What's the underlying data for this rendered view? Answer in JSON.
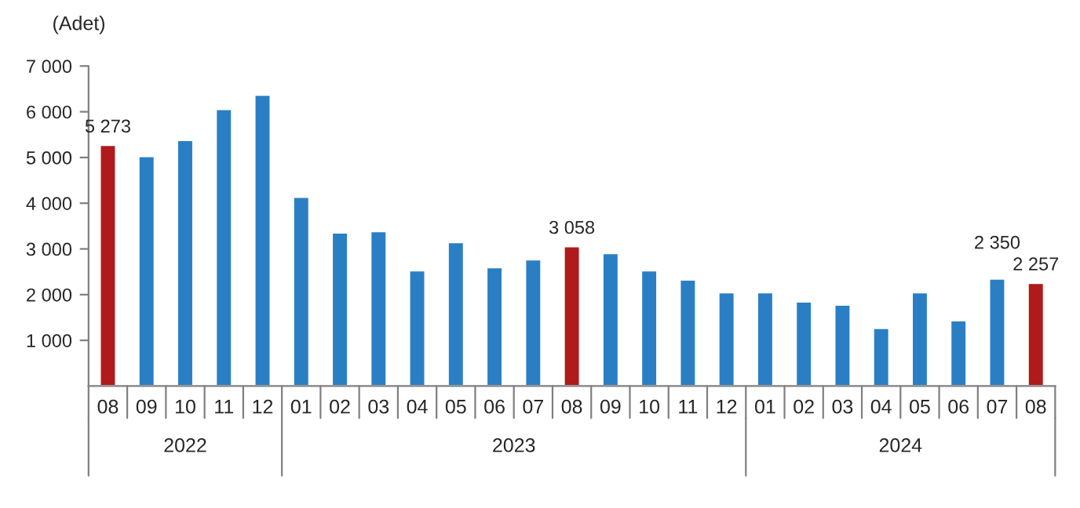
{
  "chart_data": {
    "type": "bar",
    "ylabel": "(Adet)",
    "categories": [
      "08",
      "09",
      "10",
      "11",
      "12",
      "01",
      "02",
      "03",
      "04",
      "05",
      "06",
      "07",
      "08",
      "09",
      "10",
      "11",
      "12",
      "01",
      "02",
      "03",
      "04",
      "05",
      "06",
      "07",
      "08"
    ],
    "values": [
      5273,
      5030,
      5380,
      6060,
      6370,
      4140,
      3360,
      3390,
      2530,
      3150,
      2600,
      2770,
      3058,
      2910,
      2530,
      2330,
      2050,
      2050,
      1850,
      1780,
      1270,
      2050,
      1440,
      2350,
      2257
    ],
    "colors": [
      "#b01a1a",
      "#2a7fc4",
      "#2a7fc4",
      "#2a7fc4",
      "#2a7fc4",
      "#2a7fc4",
      "#2a7fc4",
      "#2a7fc4",
      "#2a7fc4",
      "#2a7fc4",
      "#2a7fc4",
      "#2a7fc4",
      "#b01a1a",
      "#2a7fc4",
      "#2a7fc4",
      "#2a7fc4",
      "#2a7fc4",
      "#2a7fc4",
      "#2a7fc4",
      "#2a7fc4",
      "#2a7fc4",
      "#2a7fc4",
      "#2a7fc4",
      "#2a7fc4",
      "#b01a1a"
    ],
    "value_labels": [
      "5 273",
      null,
      null,
      null,
      null,
      null,
      null,
      null,
      null,
      null,
      null,
      null,
      "3 058",
      null,
      null,
      null,
      null,
      null,
      null,
      null,
      null,
      null,
      null,
      "2 350",
      "2 257"
    ],
    "annotations": [
      "2022",
      "2023",
      "2024"
    ],
    "ylim": [
      0,
      7000
    ],
    "yticks": [
      {
        "value": 1000,
        "label": "1 000"
      },
      {
        "value": 2000,
        "label": "2 000"
      },
      {
        "value": 3000,
        "label": "3 000"
      },
      {
        "value": 4000,
        "label": "4 000"
      },
      {
        "value": 5000,
        "label": "5 000"
      },
      {
        "value": 6000,
        "label": "6 000"
      },
      {
        "value": 7000,
        "label": "7 000"
      }
    ],
    "grid": false,
    "legend": false
  }
}
